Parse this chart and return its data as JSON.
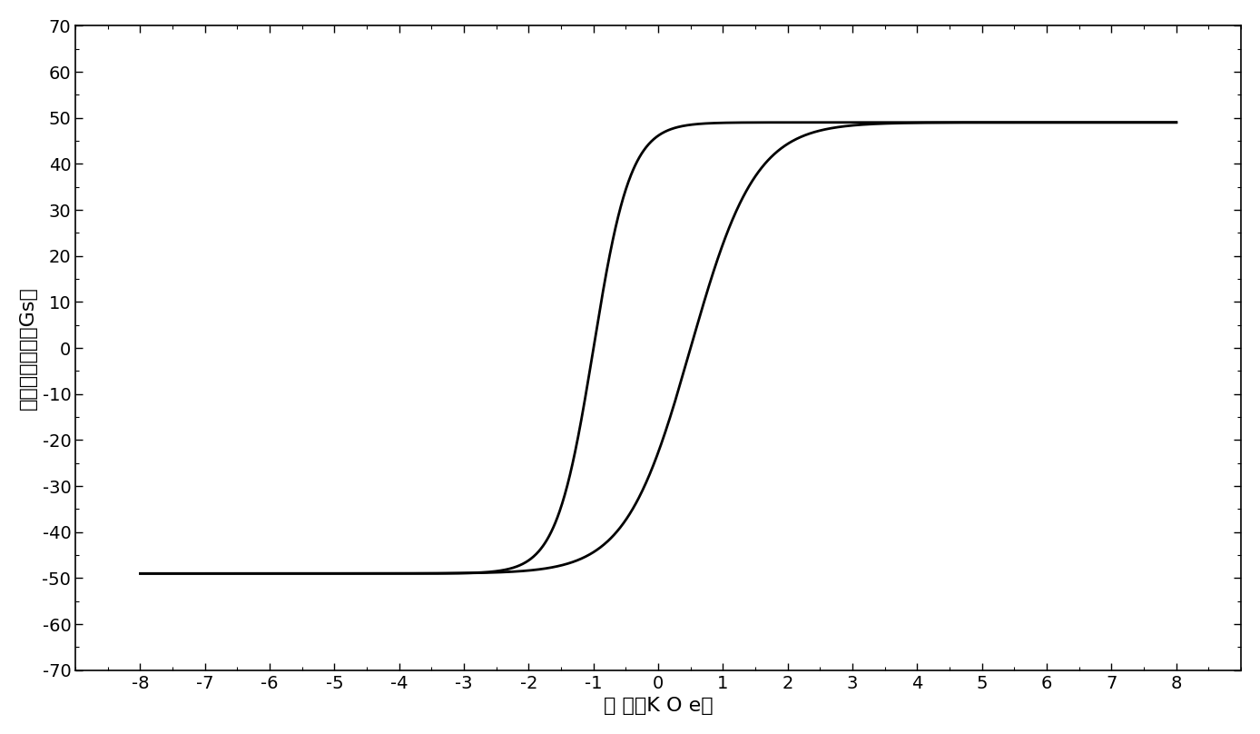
{
  "title": "",
  "xlabel": "磁 场（K O e）",
  "ylabel": "剩余磁化强度（Gs）",
  "xlim": [
    -9,
    9
  ],
  "ylim": [
    -70,
    70
  ],
  "xticks": [
    -8,
    -7,
    -6,
    -5,
    -4,
    -3,
    -2,
    -1,
    0,
    1,
    2,
    3,
    4,
    5,
    6,
    7,
    8
  ],
  "yticks": [
    -70,
    -60,
    -50,
    -40,
    -30,
    -20,
    -10,
    0,
    10,
    20,
    30,
    40,
    50,
    60,
    70
  ],
  "saturation": 49,
  "line_color": "#000000",
  "line_width": 2.0,
  "background_color": "#ffffff",
  "tick_label_fontsize": 14,
  "axis_label_fontsize": 16,
  "upper_x0": -1.0,
  "upper_k": 3.5,
  "lower_x0": 0.5,
  "lower_k": 2.0
}
